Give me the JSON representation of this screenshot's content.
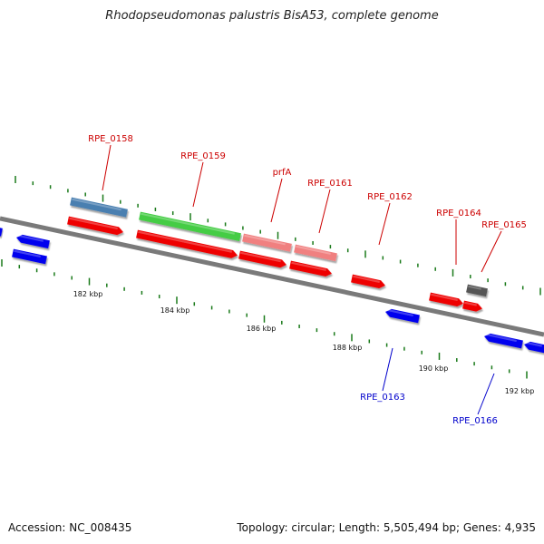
{
  "title": "Rhodopseudomonas palustris BisA53, complete genome",
  "footer": {
    "accession": "Accession: NC_008435",
    "summary": "Topology: circular; Length: 5,505,494 bp; Genes: 4,935"
  },
  "colors": {
    "backbone": "#7a7a7a",
    "tick": "#1a7a1a",
    "forward_label": "#cc0000",
    "reverse_label": "#0000cc",
    "cds_red": "#ee0000",
    "rrna_steel": "#4a7fb0",
    "rrna_green": "#44cc44",
    "pink": "#f08080",
    "gray": "#555555",
    "reverse_blue": "#0000ee",
    "kbp_text": "#111111"
  },
  "scale_labels": [
    "182 kbp",
    "184 kbp",
    "186 kbp",
    "188 kbp",
    "190 kbp",
    "192 kbp"
  ],
  "gene_labels": {
    "forward": [
      "RPE_0158",
      "RPE_0159",
      "prfA",
      "RPE_0161",
      "RPE_0162",
      "RPE_0164",
      "RPE_0165"
    ],
    "reverse": [
      "RPE_0163",
      "RPE_0166"
    ]
  }
}
